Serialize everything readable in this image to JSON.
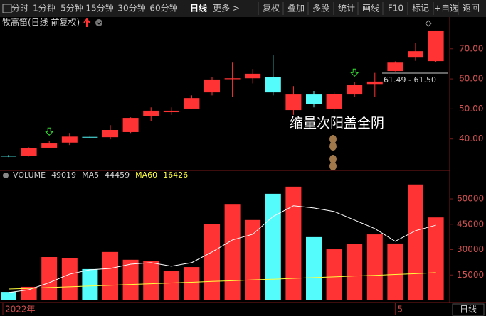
{
  "toolbar": {
    "left": [
      "分时",
      "1分钟",
      "5分钟",
      "15分钟",
      "30分钟",
      "60分钟",
      "日线",
      "更多 >"
    ],
    "right": [
      "复权",
      "叠加",
      "多股",
      "统计",
      "画线",
      "F10",
      "标记",
      "+自选",
      "返回"
    ],
    "active": "日线"
  },
  "footer": {
    "period": "日线"
  },
  "chart_data": [
    {
      "type": "candlestick",
      "title": "牧高笛(日线 前复权)",
      "categories": [
        "2022年",
        null,
        null,
        null,
        null,
        null,
        null,
        null,
        null,
        null,
        null,
        null,
        null,
        null,
        null,
        null,
        null,
        null,
        null,
        "5",
        null,
        null
      ],
      "open": [
        34.4,
        34.3,
        37.1,
        38.8,
        40.7,
        40.6,
        42.3,
        47.7,
        48.9,
        50.1,
        55.5,
        59.9,
        60.2,
        60.7,
        49.6,
        54.8,
        50.1,
        54.8,
        58.3,
        62.6,
        67.3,
        65.9
      ],
      "high": [
        34.7,
        37.2,
        39.4,
        42.0,
        41.2,
        44.6,
        47.2,
        50.5,
        50.5,
        54.5,
        60.5,
        65.4,
        63.3,
        67.8,
        57.6,
        56.0,
        55.5,
        59.0,
        62.0,
        65.8,
        72.0,
        76.1
      ],
      "low": [
        34.0,
        34.2,
        37.0,
        38.0,
        40.2,
        39.9,
        42.0,
        46.0,
        48.0,
        50.0,
        54.5,
        54.0,
        58.5,
        54.5,
        48.0,
        50.5,
        49.0,
        54.0,
        54.0,
        62.5,
        66.0,
        65.5
      ],
      "close": [
        34.3,
        37.0,
        38.5,
        40.8,
        40.6,
        43.0,
        47.0,
        49.4,
        49.4,
        53.6,
        59.8,
        60.2,
        61.7,
        55.5,
        54.8,
        51.7,
        55.0,
        58.1,
        59.1,
        65.4,
        69.2,
        76.1
      ],
      "up_color": "#ff3333",
      "down_color": "#54fcfc",
      "ylim": [
        30,
        76.8
      ],
      "yticks": [
        {
          "value": 40,
          "label": "40.00"
        },
        {
          "value": 50,
          "label": "50.00"
        },
        {
          "value": 60,
          "label": "60.00"
        },
        {
          "value": 70,
          "label": "70.00"
        }
      ],
      "signals": [
        2,
        17
      ],
      "annotation": "缩量次阳盖全阴",
      "range_label": "61.49 - 61.50"
    },
    {
      "type": "bar",
      "categories": [
        "2022年",
        null,
        null,
        null,
        null,
        null,
        null,
        null,
        null,
        null,
        null,
        null,
        null,
        null,
        null,
        null,
        null,
        null,
        null,
        "5",
        null,
        null
      ],
      "series": [
        {
          "name": "VOLUME",
          "color": "#cccccc",
          "values": [
            5000,
            8000,
            25600,
            24800,
            18500,
            28600,
            24000,
            23500,
            17600,
            19700,
            45000,
            57000,
            47500,
            63000,
            67200,
            37400,
            30200,
            33200,
            39000,
            33600,
            68500,
            49019
          ]
        },
        {
          "name": "MA5",
          "color": "#ffffff",
          "values": [
            4600,
            6300,
            10500,
            15500,
            18100,
            18900,
            21400,
            22300,
            20200,
            22300,
            28600,
            35700,
            39100,
            49600,
            55900,
            54600,
            52500,
            47500,
            42400,
            34900,
            41200,
            44459
          ]
        },
        {
          "name": "MA60",
          "color": "#ffff40",
          "values": [
            6700,
            7100,
            7600,
            8000,
            8500,
            8900,
            9400,
            9800,
            10300,
            10700,
            11200,
            11600,
            12100,
            12500,
            13000,
            13500,
            13900,
            14400,
            14800,
            15300,
            15800,
            16426
          ]
        }
      ],
      "ylim": [
        0,
        70500
      ],
      "yticks": [
        15000,
        30000,
        45000,
        60000
      ]
    }
  ]
}
